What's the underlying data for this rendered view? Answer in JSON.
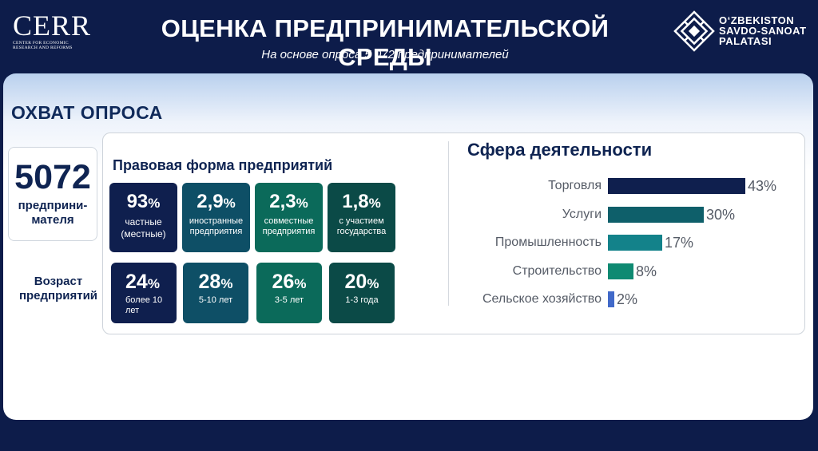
{
  "header": {
    "cerr_logo_word": "CERR",
    "cerr_logo_sub": "Center for Economic Research and Reforms",
    "title": "ОЦЕНКА ПРЕДПРИНИМАТЕЛЬСКОЙ СРЕДЫ",
    "subtitle": "На основе опроса 5 072 предпринимателей",
    "cci_logo_text": [
      "O‘ZBEKISTON",
      "SAVDO-SANOAT",
      "PALATASI"
    ]
  },
  "panel": {
    "section_title": "ОХВАТ ОПРОСА",
    "respondents": {
      "value": "5072",
      "label": "предприни­мателя"
    },
    "age_title": "Возраст предприятий",
    "legal_form": {
      "title": "Правовая форма предприятий",
      "tiles": [
        {
          "value": "93",
          "unit": "%",
          "label": "частные (местные)",
          "color": "#0f1f4e"
        },
        {
          "value": "2,9",
          "unit": "%",
          "label": "иностранные предприятия",
          "color": "#0e4f66"
        },
        {
          "value": "2,3",
          "unit": "%",
          "label": "совместные предприятия",
          "color": "#0b6a5a"
        },
        {
          "value": "1,8",
          "unit": "%",
          "label": "с участием государства",
          "color": "#0b4a47"
        }
      ]
    },
    "enterprise_age": [
      {
        "value": "24",
        "unit": "%",
        "label": "более 10 лет",
        "color": "#0f1f4e"
      },
      {
        "value": "28",
        "unit": "%",
        "label": "5-10 лет",
        "color": "#0e4f66"
      },
      {
        "value": "26",
        "unit": "%",
        "label": "3-5 лет",
        "color": "#0b6a5a"
      },
      {
        "value": "20",
        "unit": "%",
        "label": "1-3 года",
        "color": "#0b4a47"
      }
    ],
    "sphere": {
      "title": "Сфера деятельности",
      "chart_data": {
        "type": "bar",
        "orientation": "horizontal",
        "categories": [
          "Торговля",
          "Услуги",
          "Промышленность",
          "Строительство",
          "Сельское хозяйство"
        ],
        "values": [
          43,
          30,
          17,
          8,
          2
        ],
        "value_labels": [
          "43%",
          "30%",
          "17%",
          "8%",
          "2%"
        ],
        "colors": [
          "#0f1f4e",
          "#0e5f6a",
          "#13828a",
          "#0f8a72",
          "#4169c9"
        ]
      }
    }
  }
}
